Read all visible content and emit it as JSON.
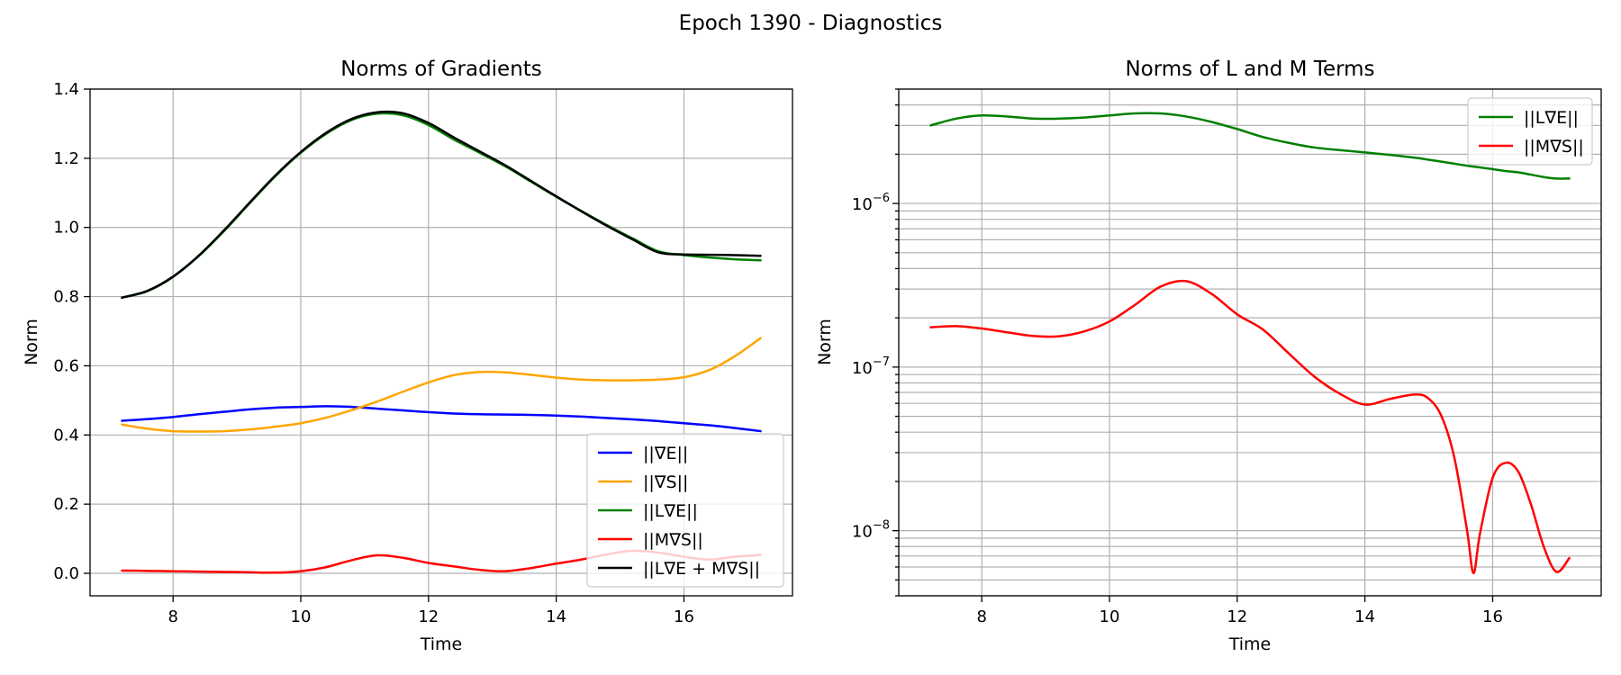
{
  "suptitle": "Epoch 1390 - Diagnostics",
  "chart_data": [
    {
      "type": "line",
      "title": "Norms of Gradients",
      "xlabel": "Time",
      "ylabel": "Norm",
      "xlim": [
        6.7,
        17.7
      ],
      "ylim": [
        -0.065,
        1.4
      ],
      "yscale": "linear",
      "xticks": [
        8,
        10,
        12,
        14,
        16
      ],
      "xtick_labels": [
        "8",
        "10",
        "12",
        "14",
        "16"
      ],
      "yticks": [
        0.0,
        0.2,
        0.4,
        0.6,
        0.8,
        1.0,
        1.2,
        1.4
      ],
      "ytick_labels": [
        "0.0",
        "0.2",
        "0.4",
        "0.6",
        "0.8",
        "1.0",
        "1.2",
        "1.4"
      ],
      "grid": true,
      "legend_position": "lower-right",
      "x": [
        7.2,
        7.6,
        8.0,
        8.4,
        8.8,
        9.2,
        9.6,
        10.0,
        10.4,
        10.8,
        11.2,
        11.6,
        12.0,
        12.4,
        12.8,
        13.2,
        13.6,
        14.0,
        14.4,
        14.8,
        15.2,
        15.6,
        16.0,
        16.4,
        16.8,
        17.2
      ],
      "series": [
        {
          "name": "||∇E||",
          "color": "#0000ff",
          "values": [
            0.441,
            0.446,
            0.452,
            0.46,
            0.467,
            0.474,
            0.479,
            0.481,
            0.483,
            0.481,
            0.476,
            0.471,
            0.466,
            0.462,
            0.46,
            0.459,
            0.458,
            0.456,
            0.453,
            0.449,
            0.445,
            0.44,
            0.434,
            0.428,
            0.42,
            0.411
          ]
        },
        {
          "name": "||∇S||",
          "color": "#ffa500",
          "values": [
            0.43,
            0.418,
            0.411,
            0.41,
            0.411,
            0.416,
            0.424,
            0.434,
            0.45,
            0.472,
            0.497,
            0.525,
            0.552,
            0.573,
            0.582,
            0.581,
            0.574,
            0.566,
            0.56,
            0.558,
            0.558,
            0.56,
            0.567,
            0.588,
            0.628,
            0.68
          ]
        },
        {
          "name": "||L∇E||",
          "color": "#008000",
          "values": [
            0.797,
            0.816,
            0.857,
            0.917,
            0.99,
            1.07,
            1.148,
            1.216,
            1.271,
            1.311,
            1.329,
            1.324,
            1.296,
            1.254,
            1.216,
            1.177,
            1.133,
            1.089,
            1.047,
            1.006,
            0.968,
            0.931,
            0.92,
            0.913,
            0.908,
            0.905
          ]
        },
        {
          "name": "||M∇S||",
          "color": "#ff0000",
          "values": [
            0.008,
            0.007,
            0.006,
            0.005,
            0.004,
            0.003,
            0.002,
            0.006,
            0.018,
            0.038,
            0.052,
            0.045,
            0.03,
            0.02,
            0.01,
            0.006,
            0.015,
            0.028,
            0.04,
            0.055,
            0.065,
            0.06,
            0.048,
            0.04,
            0.048,
            0.053
          ]
        },
        {
          "name": "||L∇E + M∇S||",
          "color": "#000000",
          "values": [
            0.797,
            0.817,
            0.858,
            0.918,
            0.992,
            1.072,
            1.15,
            1.218,
            1.274,
            1.314,
            1.333,
            1.33,
            1.302,
            1.26,
            1.22,
            1.18,
            1.135,
            1.09,
            1.046,
            1.004,
            0.965,
            0.928,
            0.922,
            0.921,
            0.92,
            0.918
          ]
        }
      ]
    },
    {
      "type": "line",
      "title": "Norms of L and M Terms",
      "xlabel": "Time",
      "ylabel": "Norm",
      "xlim": [
        6.7,
        17.7
      ],
      "ylim": [
        4e-09,
        5e-06
      ],
      "yscale": "log",
      "xticks": [
        8,
        10,
        12,
        14,
        16
      ],
      "xtick_labels": [
        "8",
        "10",
        "12",
        "14",
        "16"
      ],
      "ytick_major": [
        {
          "value": 1e-08,
          "base": "10",
          "exp": "−8"
        },
        {
          "value": 1e-07,
          "base": "10",
          "exp": "−7"
        },
        {
          "value": 1e-06,
          "base": "10",
          "exp": "−6"
        }
      ],
      "grid": true,
      "legend_position": "upper-right",
      "x": [
        7.2,
        7.6,
        8.0,
        8.4,
        8.8,
        9.2,
        9.6,
        10.0,
        10.4,
        10.8,
        11.2,
        11.6,
        12.0,
        12.4,
        12.8,
        13.2,
        13.6,
        14.0,
        14.4,
        14.8,
        15.0,
        15.2,
        15.4,
        15.6,
        15.7,
        15.8,
        16.0,
        16.2,
        16.4,
        16.6,
        16.8,
        17.0,
        17.2
      ],
      "series": [
        {
          "name": "||L∇E||",
          "color": "#008000",
          "values": [
            3e-06,
            3.3e-06,
            3.45e-06,
            3.4e-06,
            3.3e-06,
            3.3e-06,
            3.35e-06,
            3.45e-06,
            3.55e-06,
            3.55e-06,
            3.4e-06,
            3.15e-06,
            2.85e-06,
            2.55e-06,
            2.35e-06,
            2.2e-06,
            2.12e-06,
            2.05e-06,
            1.98e-06,
            1.9e-06,
            1.85e-06,
            1.8e-06,
            1.75e-06,
            1.7e-06,
            1.68e-06,
            1.66e-06,
            1.62e-06,
            1.58e-06,
            1.55e-06,
            1.5e-06,
            1.45e-06,
            1.42e-06,
            1.42e-06
          ]
        },
        {
          "name": "||M∇S||",
          "color": "#ff0000",
          "values": [
            1.75e-07,
            1.78e-07,
            1.72e-07,
            1.63e-07,
            1.55e-07,
            1.54e-07,
            1.65e-07,
            1.9e-07,
            2.4e-07,
            3.1e-07,
            3.35e-07,
            2.8e-07,
            2.1e-07,
            1.7e-07,
            1.22e-07,
            8.8e-08,
            6.9e-08,
            5.9e-08,
            6.4e-08,
            6.8e-08,
            6.4e-08,
            5e-08,
            2.8e-08,
            1e-08,
            5.5e-09,
            9.5e-09,
            2.1e-08,
            2.6e-08,
            2.3e-08,
            1.45e-08,
            8e-09,
            5.6e-09,
            6.8e-09
          ]
        }
      ]
    }
  ]
}
